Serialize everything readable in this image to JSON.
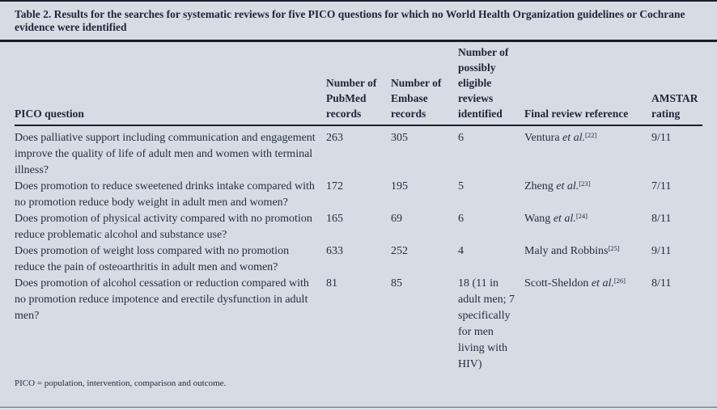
{
  "table": {
    "title": "Table 2. Results for the searches for systematic reviews for five PICO questions for which no World Health Organization guidelines or Cochrane evidence were identified",
    "columns": [
      "PICO question",
      "Number of PubMed records",
      "Number of Embase records",
      "Number of possibly eligible reviews identified",
      "Final review reference",
      "AMSTAR rating"
    ],
    "rows": [
      {
        "question": "Does palliative support including communication and engagement improve the quality of life of adult men and women with terminal illness?",
        "pubmed": "263",
        "embase": "305",
        "eligible": "6",
        "reference": {
          "name": "Ventura",
          "etal": " et al.",
          "sup": "[22]"
        },
        "amstar": "9/11"
      },
      {
        "question": "Does promotion to reduce sweetened drinks intake compared with no promotion reduce body weight in adult men and women?",
        "pubmed": "172",
        "embase": "195",
        "eligible": "5",
        "reference": {
          "name": "Zheng",
          "etal": " et al.",
          "sup": "[23]"
        },
        "amstar": "7/11"
      },
      {
        "question": "Does promotion of physical activity compared with no promotion reduce problematic alcohol and substance use?",
        "pubmed": "165",
        "embase": "69",
        "eligible": "6",
        "reference": {
          "name": "Wang",
          "etal": " et al.",
          "sup": "[24]"
        },
        "amstar": "8/11"
      },
      {
        "question": "Does promotion of weight loss compared with no promotion reduce the pain of osteoarthritis in adult men and women?",
        "pubmed": "633",
        "embase": "252",
        "eligible": "4",
        "reference": {
          "name": "Maly and Robbins",
          "etal": "",
          "sup": "[25]"
        },
        "amstar": "9/11"
      },
      {
        "question": "Does promotion of alcohol cessation or reduction compared with no promotion reduce impotence and erectile dysfunction in adult men?",
        "pubmed": "81",
        "embase": "85",
        "eligible": "18 (11 in adult men; 7 specifi­cally for men living with HIV)",
        "reference": {
          "name": "Scott-Sheldon",
          "etal": " et al.",
          "sup": "[26]"
        },
        "amstar": "8/11"
      }
    ],
    "footnote": "PICO = population, intervention, comparison and outcome.",
    "colors": {
      "background": "#d7dbe3",
      "text": "#242d42",
      "rule": "#191e2a"
    }
  }
}
